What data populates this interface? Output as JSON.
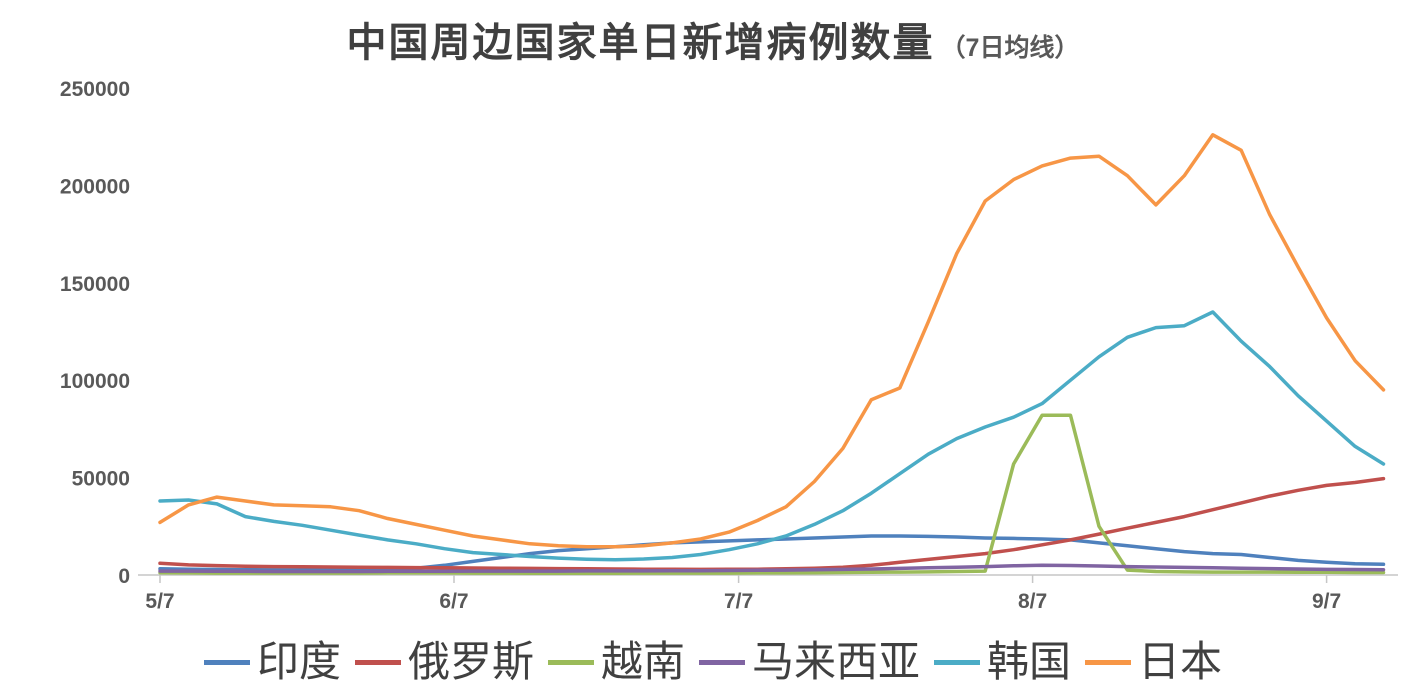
{
  "chart": {
    "title_main": "中国周边国家单日新增病例数量",
    "title_sub": "（7日均线）"
  },
  "chart_data": {
    "type": "line",
    "title": "中国周边国家单日新增病例数量（7日均线）",
    "xlabel": "",
    "ylabel": "",
    "ylim": [
      0,
      250000
    ],
    "grid": false,
    "legend_position": "bottom",
    "y_ticks": [
      0,
      50000,
      100000,
      150000,
      200000,
      250000
    ],
    "x_ticks": [
      "5/7",
      "6/7",
      "7/7",
      "8/7",
      "9/7"
    ],
    "x": [
      "5/7",
      "5/10",
      "5/13",
      "5/16",
      "5/19",
      "5/22",
      "5/25",
      "5/28",
      "5/31",
      "6/3",
      "6/6",
      "6/9",
      "6/12",
      "6/15",
      "6/18",
      "6/21",
      "6/24",
      "6/27",
      "6/30",
      "7/3",
      "7/6",
      "7/9",
      "7/12",
      "7/15",
      "7/18",
      "7/21",
      "7/24",
      "7/27",
      "7/30",
      "8/2",
      "8/5",
      "8/8",
      "8/11",
      "8/14",
      "8/17",
      "8/20",
      "8/23",
      "8/26",
      "8/29",
      "9/1",
      "9/4",
      "9/7",
      "9/10",
      "9/13"
    ],
    "series": [
      {
        "id": "india",
        "name": "印度",
        "color": "#4F81BD",
        "values": [
          3200,
          3000,
          2800,
          2700,
          2600,
          2500,
          2500,
          2600,
          2800,
          3500,
          5000,
          7000,
          9000,
          11000,
          12500,
          13500,
          14500,
          15500,
          16500,
          17000,
          17500,
          18000,
          18500,
          19000,
          19500,
          20000,
          20000,
          19800,
          19500,
          19000,
          18800,
          18500,
          18000,
          16500,
          15000,
          13500,
          12000,
          11000,
          10500,
          9000,
          7500,
          6500,
          5800,
          5500
        ]
      },
      {
        "id": "russia",
        "name": "俄罗斯",
        "color": "#C0504D",
        "values": [
          6000,
          5200,
          4800,
          4500,
          4300,
          4200,
          4100,
          4000,
          3900,
          3800,
          3700,
          3600,
          3500,
          3400,
          3300,
          3200,
          3100,
          3000,
          2950,
          2900,
          2950,
          3000,
          3200,
          3500,
          4000,
          5000,
          6500,
          8000,
          9500,
          11000,
          13000,
          15500,
          18000,
          21000,
          24000,
          27000,
          30000,
          33500,
          37000,
          40500,
          43500,
          46000,
          47500,
          49500
        ]
      },
      {
        "id": "vietnam",
        "name": "越南",
        "color": "#9BBB59",
        "values": [
          1200,
          1100,
          1000,
          1000,
          1000,
          1000,
          1000,
          1000,
          1100,
          1100,
          1100,
          1000,
          1000,
          900,
          900,
          900,
          900,
          1000,
          1000,
          1000,
          1000,
          1100,
          1100,
          1200,
          1300,
          1400,
          1500,
          1600,
          1800,
          2000,
          57000,
          82000,
          82000,
          25000,
          2500,
          1800,
          1600,
          1500,
          1500,
          1500,
          1400,
          1400,
          1300,
          1300
        ]
      },
      {
        "id": "malaysia",
        "name": "马来西亚",
        "color": "#8064A2",
        "values": [
          2000,
          2000,
          1900,
          1900,
          1800,
          1800,
          1800,
          1800,
          1900,
          1900,
          1900,
          2000,
          2000,
          2000,
          2000,
          2100,
          2100,
          2100,
          2200,
          2200,
          2300,
          2400,
          2500,
          2700,
          2900,
          3100,
          3400,
          3700,
          4000,
          4300,
          4700,
          5000,
          4900,
          4600,
          4300,
          4100,
          3900,
          3700,
          3500,
          3300,
          3100,
          2900,
          2800,
          2700
        ]
      },
      {
        "id": "south-korea",
        "name": "韩国",
        "color": "#4BACC6",
        "values": [
          38000,
          38500,
          36500,
          30000,
          27500,
          25500,
          23000,
          20500,
          18000,
          16000,
          13500,
          11500,
          10500,
          9500,
          8700,
          8100,
          7800,
          8200,
          9000,
          10500,
          13000,
          16000,
          20000,
          26000,
          33000,
          42000,
          52000,
          62000,
          70000,
          76000,
          81000,
          88000,
          100000,
          112000,
          122000,
          127000,
          128000,
          135000,
          120000,
          107000,
          92000,
          79000,
          66000,
          57000
        ]
      },
      {
        "id": "japan",
        "name": "日本",
        "color": "#F79646",
        "values": [
          27000,
          36000,
          40000,
          38000,
          36000,
          35500,
          35000,
          33000,
          29000,
          26000,
          23000,
          20000,
          18000,
          16000,
          15000,
          14500,
          14500,
          15000,
          16500,
          18500,
          22000,
          28000,
          35000,
          48000,
          65000,
          90000,
          96000,
          130000,
          165000,
          192000,
          203000,
          210000,
          214000,
          215000,
          205000,
          190000,
          205000,
          226000,
          218000,
          185000,
          158000,
          132000,
          110000,
          95000
        ]
      }
    ]
  }
}
